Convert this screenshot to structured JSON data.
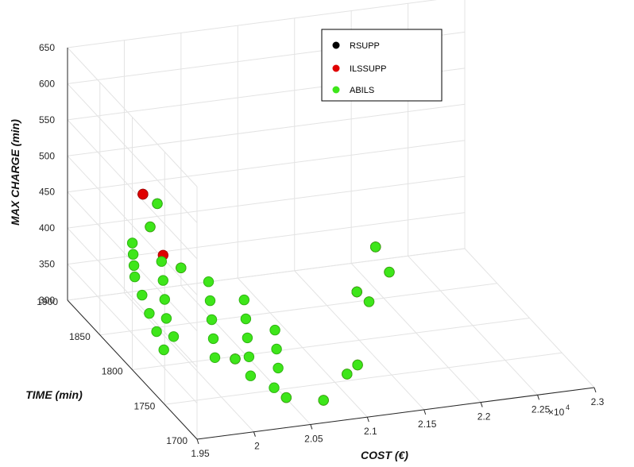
{
  "chart_data": {
    "type": "scatter3d",
    "xlabel": "COST (€)",
    "ylabel": "TIME (min)",
    "zlabel": "MAX CHARGE (min)",
    "x_multiplier": "×10",
    "x_multiplier_exp": "4",
    "xlim": [
      1.95,
      2.3
    ],
    "ylim": [
      1700,
      1900
    ],
    "zlim": [
      300,
      650
    ],
    "x_ticks": [
      "1.95",
      "2",
      "2.05",
      "2.1",
      "2.15",
      "2.2",
      "2.25",
      "2.3"
    ],
    "y_ticks": [
      "1700",
      "1750",
      "1800",
      "1850",
      "1900"
    ],
    "z_ticks": [
      "300",
      "350",
      "400",
      "450",
      "500",
      "550",
      "600",
      "650"
    ],
    "grid": true,
    "legend_position": "top-right",
    "series": [
      {
        "name": "RSUPP",
        "color": "#000000",
        "points": [
          [
            2.005,
            1880,
            455
          ],
          [
            2.012,
            1870,
            450
          ],
          [
            2.015,
            1755,
            345
          ],
          [
            2.165,
            1830,
            335
          ],
          [
            2.21,
            1880,
            340
          ]
        ]
      },
      {
        "name": "ILSSUPP",
        "color": "#e00000",
        "points": [
          [
            2.005,
            1880,
            455
          ],
          [
            2.0,
            1860,
            430
          ],
          [
            2.0,
            1840,
            410
          ],
          [
            2.01,
            1830,
            400
          ],
          [
            2.015,
            1755,
            345
          ],
          [
            2.04,
            1720,
            320
          ],
          [
            2.07,
            1715,
            315
          ],
          [
            2.105,
            1740,
            320
          ],
          [
            2.12,
            1750,
            320
          ],
          [
            2.165,
            1830,
            335
          ],
          [
            2.17,
            1820,
            330
          ],
          [
            2.205,
            1850,
            335
          ],
          [
            2.21,
            1880,
            340
          ]
        ]
      },
      {
        "name": "ABILS",
        "color": "#3ee61a",
        "points": [
          [
            2.012,
            1870,
            450
          ],
          [
            1.955,
            1760,
            365
          ],
          [
            1.96,
            1780,
            370
          ],
          [
            1.965,
            1800,
            375
          ],
          [
            1.97,
            1820,
            380
          ],
          [
            1.975,
            1840,
            385
          ],
          [
            1.98,
            1850,
            390
          ],
          [
            1.985,
            1860,
            395
          ],
          [
            1.99,
            1870,
            400
          ],
          [
            1.975,
            1780,
            360
          ],
          [
            1.98,
            1800,
            365
          ],
          [
            1.99,
            1820,
            370
          ],
          [
            2.0,
            1840,
            375
          ],
          [
            2.01,
            1860,
            380
          ],
          [
            2.0,
            1760,
            345
          ],
          [
            2.01,
            1780,
            350
          ],
          [
            2.02,
            1800,
            355
          ],
          [
            2.03,
            1820,
            360
          ],
          [
            2.04,
            1840,
            365
          ],
          [
            2.02,
            1740,
            335
          ],
          [
            2.03,
            1760,
            340
          ],
          [
            2.04,
            1780,
            345
          ],
          [
            2.05,
            1800,
            350
          ],
          [
            2.06,
            1820,
            355
          ],
          [
            2.035,
            1730,
            325
          ],
          [
            2.05,
            1750,
            330
          ],
          [
            2.06,
            1770,
            335
          ],
          [
            2.07,
            1790,
            340
          ],
          [
            2.015,
            1755,
            345
          ],
          [
            2.04,
            1720,
            320
          ],
          [
            2.07,
            1715,
            315
          ],
          [
            2.105,
            1740,
            320
          ],
          [
            2.12,
            1750,
            320
          ],
          [
            2.165,
            1830,
            335
          ],
          [
            2.17,
            1820,
            330
          ],
          [
            2.205,
            1850,
            335
          ],
          [
            2.21,
            1880,
            340
          ],
          [
            2.0,
            1860,
            430
          ],
          [
            2.01,
            1830,
            400
          ]
        ]
      }
    ]
  }
}
